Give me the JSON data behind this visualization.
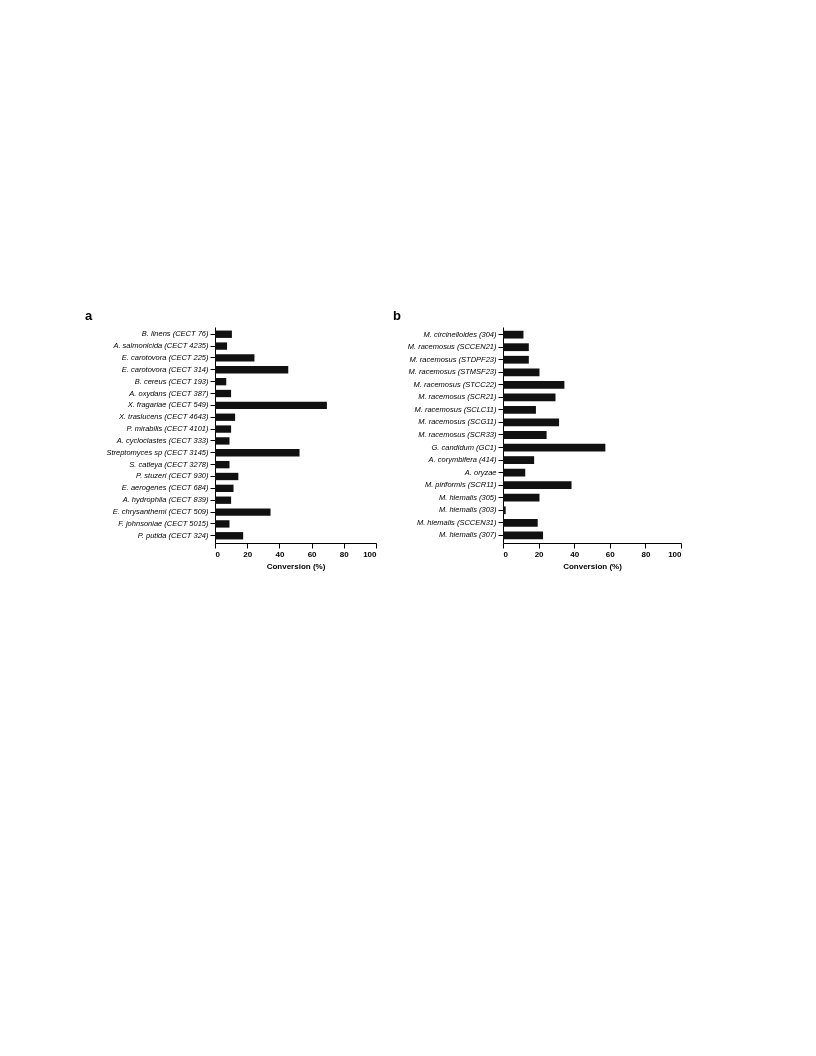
{
  "chart_data": [
    {
      "type": "bar",
      "title": "a",
      "orientation": "horizontal",
      "xlabel": "Conversion (%)",
      "xlim": [
        0,
        100
      ],
      "xticks": [
        0,
        20,
        40,
        60,
        80,
        100
      ],
      "grid": false,
      "color": "#111111",
      "categories": [
        "B. linens (CECT 76)",
        "A. salmonicida (CECT 4235)",
        "E. carotovora (CECT 225)",
        "E. carotovora (CECT 314)",
        "B. cereus (CECT 193)",
        "A. oxydans (CECT 387)",
        "X. fragariae (CECT 549)",
        "X. traslucens (CECT 4643)",
        "P. mirabilis (CECT 4101)",
        "A. cycloclastes (CECT 333)",
        "Streptomyces sp (CECT 3145)",
        "S. catleya (CECT 3278)",
        "P. stuzeri (CECT 930)",
        "E. aerogenes (CECT 684)",
        "A. hydrophila (CECT 839)",
        "E. chrysanthemi (CECT 509)",
        "F. johnsoniae (CECT 5015)",
        "P. putida (CECT 324)"
      ],
      "values": [
        10.5,
        7.5,
        24.5,
        45.5,
        7,
        10,
        69.5,
        12.5,
        10,
        9,
        52.5,
        9,
        14.5,
        11.5,
        10,
        34.5,
        9,
        17.5
      ]
    },
    {
      "type": "bar",
      "title": "b",
      "orientation": "horizontal",
      "xlabel": "Conversion (%)",
      "xlim": [
        0,
        100
      ],
      "xticks": [
        0,
        20,
        40,
        60,
        80,
        100
      ],
      "grid": false,
      "color": "#111111",
      "categories": [
        "M. circinelloides (304)",
        "M. racemosus (SCCEN21)",
        "M. racemosus (STDPF23)",
        "M. racemosus (STMSF23)",
        "M. racemosus (STCC22)",
        "M. racemosus (SCR21)",
        "M. racemosus (SCLC11)",
        "M. racemosus (SCG11)",
        "M. racemosus (SCR33)",
        "G. candidum (GC1)",
        "A. corymbifera (414)",
        "A. oryzae",
        "M. piriformis (SCR11)",
        "M. hiemalis (305)",
        "M. hiemalis (303)",
        "M. hiemalis (SCCEN31)",
        "M. hiemalis (307)"
      ],
      "values": [
        11.5,
        14.5,
        14.5,
        20.5,
        34.5,
        29.5,
        18.5,
        31.5,
        24.5,
        57.5,
        17.5,
        12.5,
        38.5,
        20.5,
        1.5,
        19.5,
        22.5
      ]
    }
  ]
}
